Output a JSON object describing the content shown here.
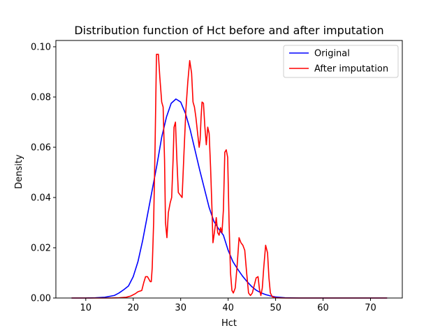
{
  "chart_data": {
    "type": "line",
    "title": "Distribution function of Hct before and after imputation",
    "xlabel": "Hct",
    "ylabel": "Density",
    "xlim": [
      3.7,
      76.7
    ],
    "ylim": [
      0,
      0.1025
    ],
    "xticks": [
      10,
      20,
      30,
      40,
      50,
      60,
      70
    ],
    "yticks": [
      0.0,
      0.02,
      0.04,
      0.06,
      0.08,
      0.1
    ],
    "ytick_labels": [
      "0.00",
      "0.02",
      "0.04",
      "0.06",
      "0.08",
      "0.10"
    ],
    "grid": false,
    "legend_position": "top-right",
    "series": [
      {
        "name": "Original",
        "color": "#0000ff",
        "points": [
          [
            7.0,
            0.0
          ],
          [
            10.0,
            0.0
          ],
          [
            12.0,
            0.0001
          ],
          [
            14.0,
            0.0003
          ],
          [
            16.0,
            0.001
          ],
          [
            17.0,
            0.002
          ],
          [
            18.0,
            0.0033
          ],
          [
            19.0,
            0.0048
          ],
          [
            20.0,
            0.0085
          ],
          [
            21.0,
            0.0145
          ],
          [
            22.0,
            0.023
          ],
          [
            23.0,
            0.033
          ],
          [
            24.0,
            0.043
          ],
          [
            25.0,
            0.053
          ],
          [
            26.0,
            0.064
          ],
          [
            27.0,
            0.072
          ],
          [
            28.0,
            0.0775
          ],
          [
            29.0,
            0.0792
          ],
          [
            30.0,
            0.078
          ],
          [
            31.0,
            0.0735
          ],
          [
            32.0,
            0.067
          ],
          [
            33.0,
            0.059
          ],
          [
            34.0,
            0.051
          ],
          [
            35.0,
            0.0435
          ],
          [
            36.0,
            0.036
          ],
          [
            37.0,
            0.0305
          ],
          [
            38.0,
            0.0275
          ],
          [
            39.0,
            0.025
          ],
          [
            40.0,
            0.019
          ],
          [
            41.0,
            0.0145
          ],
          [
            42.0,
            0.0115
          ],
          [
            43.0,
            0.0088
          ],
          [
            44.0,
            0.0065
          ],
          [
            45.0,
            0.0045
          ],
          [
            46.0,
            0.003
          ],
          [
            47.0,
            0.002
          ],
          [
            48.0,
            0.0013
          ],
          [
            49.0,
            0.0008
          ],
          [
            50.0,
            0.0004
          ],
          [
            52.0,
            0.0001
          ],
          [
            55.0,
            0.0
          ],
          [
            60.0,
            0.0
          ],
          [
            73.5,
            0.0
          ]
        ]
      },
      {
        "name": "After imputation",
        "color": "#ff0000",
        "points": [
          [
            7.0,
            0.0
          ],
          [
            12.0,
            0.0
          ],
          [
            15.0,
            0.0
          ],
          [
            17.0,
            0.0001
          ],
          [
            18.5,
            0.0003
          ],
          [
            19.5,
            0.0008
          ],
          [
            20.5,
            0.0018
          ],
          [
            21.0,
            0.0025
          ],
          [
            21.8,
            0.003
          ],
          [
            22.2,
            0.006
          ],
          [
            22.6,
            0.0085
          ],
          [
            23.0,
            0.0085
          ],
          [
            23.3,
            0.0075
          ],
          [
            23.6,
            0.0065
          ],
          [
            23.8,
            0.0065
          ],
          [
            24.0,
            0.012
          ],
          [
            24.3,
            0.03
          ],
          [
            24.6,
            0.06
          ],
          [
            24.9,
            0.097
          ],
          [
            25.3,
            0.097
          ],
          [
            25.6,
            0.088
          ],
          [
            26.0,
            0.078
          ],
          [
            26.3,
            0.076
          ],
          [
            26.6,
            0.055
          ],
          [
            26.8,
            0.03
          ],
          [
            27.1,
            0.024
          ],
          [
            27.4,
            0.034
          ],
          [
            27.8,
            0.038
          ],
          [
            28.1,
            0.04
          ],
          [
            28.4,
            0.055
          ],
          [
            28.6,
            0.068
          ],
          [
            28.9,
            0.07
          ],
          [
            29.2,
            0.055
          ],
          [
            29.5,
            0.042
          ],
          [
            29.9,
            0.041
          ],
          [
            30.3,
            0.04
          ],
          [
            30.7,
            0.058
          ],
          [
            31.1,
            0.075
          ],
          [
            31.5,
            0.086
          ],
          [
            31.9,
            0.0945
          ],
          [
            32.3,
            0.0895
          ],
          [
            32.6,
            0.078
          ],
          [
            32.9,
            0.076
          ],
          [
            33.2,
            0.072
          ],
          [
            33.6,
            0.065
          ],
          [
            33.9,
            0.06
          ],
          [
            34.1,
            0.063
          ],
          [
            34.3,
            0.072
          ],
          [
            34.5,
            0.078
          ],
          [
            34.8,
            0.0775
          ],
          [
            35.1,
            0.068
          ],
          [
            35.4,
            0.061
          ],
          [
            35.7,
            0.068
          ],
          [
            36.0,
            0.0655
          ],
          [
            36.3,
            0.052
          ],
          [
            36.6,
            0.035
          ],
          [
            36.8,
            0.022
          ],
          [
            37.1,
            0.026
          ],
          [
            37.5,
            0.032
          ],
          [
            37.8,
            0.026
          ],
          [
            38.1,
            0.025
          ],
          [
            38.4,
            0.028
          ],
          [
            38.7,
            0.026
          ],
          [
            39.0,
            0.035
          ],
          [
            39.3,
            0.058
          ],
          [
            39.6,
            0.059
          ],
          [
            39.9,
            0.056
          ],
          [
            40.2,
            0.03
          ],
          [
            40.5,
            0.01
          ],
          [
            40.8,
            0.003
          ],
          [
            41.1,
            0.002
          ],
          [
            41.5,
            0.004
          ],
          [
            41.9,
            0.013
          ],
          [
            42.3,
            0.024
          ],
          [
            42.7,
            0.022
          ],
          [
            43.1,
            0.021
          ],
          [
            43.5,
            0.019
          ],
          [
            43.9,
            0.01
          ],
          [
            44.3,
            0.002
          ],
          [
            44.7,
            0.001
          ],
          [
            45.1,
            0.002
          ],
          [
            45.5,
            0.005
          ],
          [
            45.9,
            0.008
          ],
          [
            46.3,
            0.0085
          ],
          [
            46.6,
            0.0035
          ],
          [
            46.9,
            0.001
          ],
          [
            47.2,
            0.004
          ],
          [
            47.5,
            0.012
          ],
          [
            47.9,
            0.021
          ],
          [
            48.3,
            0.018
          ],
          [
            48.6,
            0.008
          ],
          [
            48.9,
            0.002
          ],
          [
            49.3,
            0.0005
          ],
          [
            50.0,
            0.0001
          ],
          [
            52.0,
            0.0
          ],
          [
            55.0,
            0.0
          ],
          [
            60.0,
            0.0
          ],
          [
            73.5,
            0.0
          ]
        ]
      }
    ]
  }
}
